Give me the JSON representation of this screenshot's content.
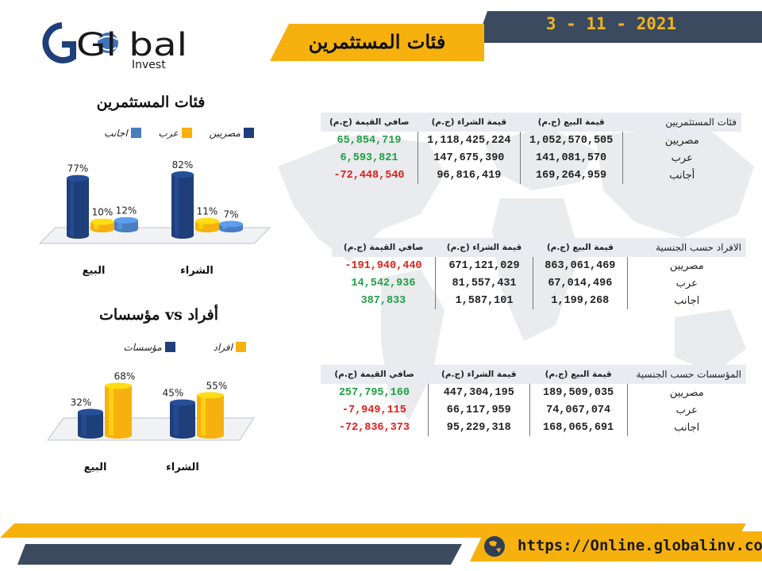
{
  "header": {
    "date": "3 - 11 - 2021",
    "title": "فئات المستثمرين"
  },
  "logo": {
    "text": "Global",
    "sub": "Invest"
  },
  "footer": {
    "url": "https://Online.globalinv.com.eg"
  },
  "colors": {
    "navy": "#1f3f7a",
    "yellow": "#f6b10f",
    "blue": "#4a7ec0",
    "dark": "#3b4a5e",
    "positive": "#21a046",
    "negative": "#e0201c"
  },
  "chart_data": [
    {
      "type": "bar",
      "title": "فئات المستثمرين",
      "categories": [
        "البيع",
        "الشراء"
      ],
      "series": [
        {
          "name": "مصريين",
          "values": [
            77,
            82
          ]
        },
        {
          "name": "عرب",
          "values": [
            10,
            11
          ]
        },
        {
          "name": "اجانب",
          "values": [
            12,
            7
          ]
        }
      ],
      "data_labels": [
        [
          "77%",
          "10%",
          "12%"
        ],
        [
          "82%",
          "11%",
          "7%"
        ]
      ],
      "ylim": [
        0,
        100
      ],
      "legend": "top"
    },
    {
      "type": "bar",
      "title": "أفراد vs مؤسسات",
      "categories": [
        "البيع",
        "الشراء"
      ],
      "series": [
        {
          "name": "مؤسسات",
          "values": [
            32,
            45
          ]
        },
        {
          "name": "افراد",
          "values": [
            68,
            55
          ]
        }
      ],
      "data_labels": [
        [
          "32%",
          "68%"
        ],
        [
          "45%",
          "55%"
        ]
      ],
      "ylim": [
        0,
        100
      ],
      "legend": "top"
    },
    {
      "type": "table",
      "headers": [
        "فئات المستثمريين",
        "قيمة البيع (ج.م)",
        "قيمة الشراء (ج.م)",
        "صافي القيمة (ج.م)"
      ],
      "rows": [
        [
          "مصريين",
          "1,052,570,505",
          "1,118,425,224",
          "65,854,719"
        ],
        [
          "عرب",
          "141,081,570",
          "147,675,390",
          "6,593,821"
        ],
        [
          "أجانب",
          "169,264,959",
          "96,816,419",
          "-72,448,540"
        ]
      ]
    },
    {
      "type": "table",
      "headers": [
        "الافراد حسب الجنسية",
        "قيمة البيع (ج.م)",
        "قيمة الشراء (ج.م)",
        "صافي القيمة (ج.م)"
      ],
      "rows": [
        [
          "مصريين",
          "863,061,469",
          "671,121,029",
          "-191,940,440"
        ],
        [
          "عرب",
          "67,014,496",
          "81,557,431",
          "14,542,936"
        ],
        [
          "اجانب",
          "1,199,268",
          "1,587,101",
          "387,833"
        ]
      ]
    },
    {
      "type": "table",
      "headers": [
        "المؤسسات حسب الجنسية",
        "قيمة البيع (ج.م)",
        "قيمة الشراء (ج.م)",
        "صافي القيمة (ج.م)"
      ],
      "rows": [
        [
          "مصريين",
          "189,509,035",
          "447,304,195",
          "257,795,160"
        ],
        [
          "عرب",
          "74,067,074",
          "66,117,959",
          "-7,949,115"
        ],
        [
          "اجانب",
          "168,065,691",
          "95,229,318",
          "-72,836,373"
        ]
      ]
    }
  ]
}
